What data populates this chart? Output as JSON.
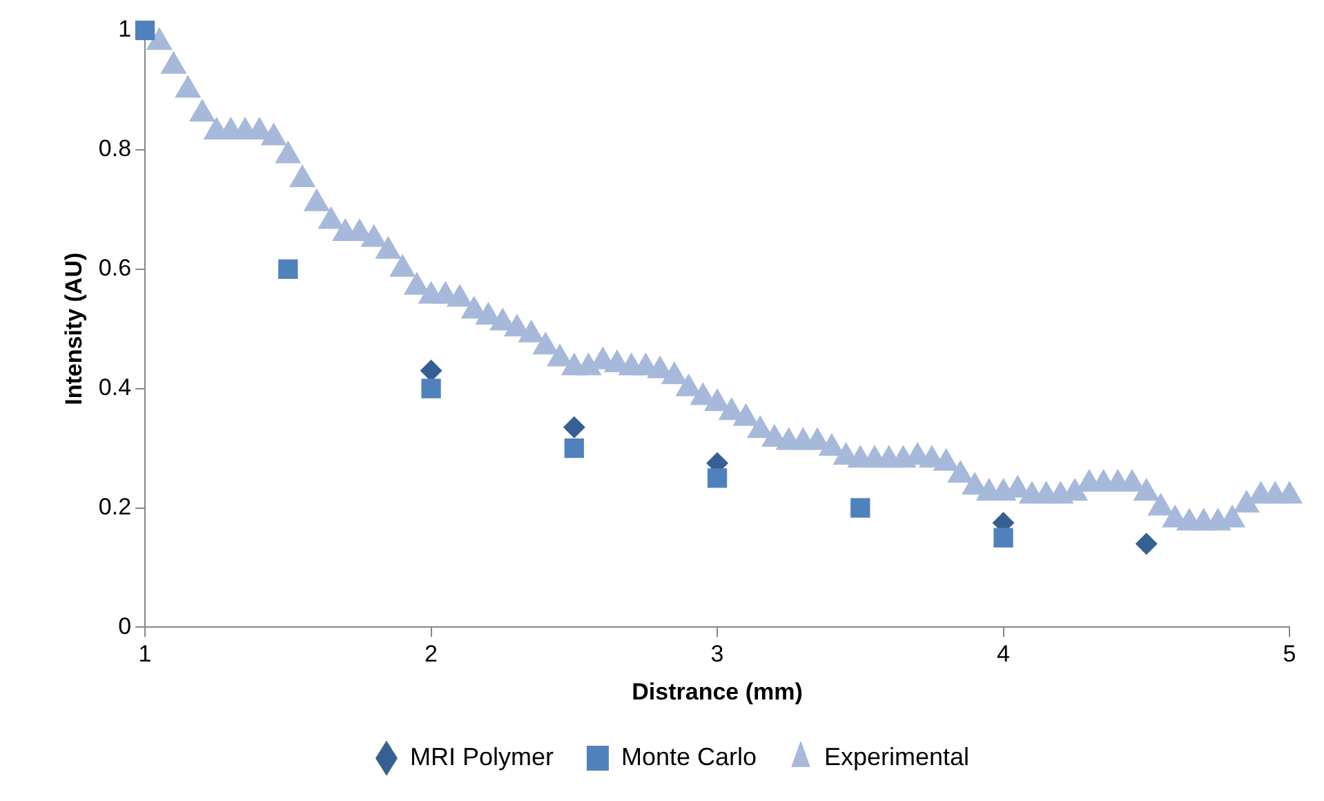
{
  "chart_data": {
    "type": "scatter",
    "xlabel": "Distrance (mm)",
    "ylabel": "Intensity (AU)",
    "xlim": [
      1,
      5
    ],
    "xticks": [
      1,
      2,
      3,
      4,
      5
    ],
    "ylim": [
      0,
      1
    ],
    "yticks": [
      0,
      0.2,
      0.4,
      0.6,
      0.8,
      1
    ],
    "grid": false,
    "legend": "bottom",
    "series": [
      {
        "name": "MRI Polymer",
        "color": "#376092",
        "marker": "diamond",
        "x": [
          2,
          2.5,
          3,
          4,
          4.5
        ],
        "values": [
          0.43,
          0.335,
          0.275,
          0.175,
          0.14
        ]
      },
      {
        "name": "Monte Carlo",
        "color": "#4f81bd",
        "marker": "square",
        "x": [
          1,
          1.5,
          2,
          2.5,
          3,
          3.5,
          4
        ],
        "values": [
          1,
          0.6,
          0.4,
          0.3,
          0.25,
          0.2,
          0.15
        ]
      },
      {
        "name": "Experimental",
        "color": "#a6b9da",
        "marker": "triangle",
        "x": [
          1.05,
          1.1,
          1.15,
          1.2,
          1.25,
          1.3,
          1.35,
          1.4,
          1.45,
          1.5,
          1.55,
          1.6,
          1.65,
          1.7,
          1.75,
          1.8,
          1.85,
          1.9,
          1.95,
          2,
          2.05,
          2.1,
          2.15,
          2.2,
          2.25,
          2.3,
          2.35,
          2.4,
          2.45,
          2.5,
          2.55,
          2.6,
          2.65,
          2.7,
          2.75,
          2.8,
          2.85,
          2.9,
          2.95,
          3,
          3.05,
          3.1,
          3.15,
          3.2,
          3.25,
          3.3,
          3.35,
          3.4,
          3.45,
          3.5,
          3.55,
          3.6,
          3.65,
          3.7,
          3.75,
          3.8,
          3.85,
          3.9,
          3.95,
          4,
          4.05,
          4.1,
          4.15,
          4.2,
          4.25,
          4.3,
          4.35,
          4.4,
          4.45,
          4.5,
          4.55,
          4.6,
          4.65,
          4.7,
          4.75,
          4.8,
          4.85,
          4.9,
          4.95,
          5
        ],
        "values": [
          0.98,
          0.94,
          0.9,
          0.86,
          0.83,
          0.83,
          0.83,
          0.83,
          0.82,
          0.79,
          0.75,
          0.71,
          0.68,
          0.66,
          0.66,
          0.65,
          0.63,
          0.6,
          0.57,
          0.555,
          0.555,
          0.55,
          0.53,
          0.52,
          0.51,
          0.5,
          0.49,
          0.47,
          0.45,
          0.435,
          0.435,
          0.445,
          0.44,
          0.435,
          0.435,
          0.43,
          0.42,
          0.4,
          0.385,
          0.375,
          0.36,
          0.35,
          0.33,
          0.315,
          0.31,
          0.31,
          0.31,
          0.3,
          0.285,
          0.28,
          0.28,
          0.28,
          0.28,
          0.285,
          0.28,
          0.275,
          0.255,
          0.235,
          0.225,
          0.225,
          0.23,
          0.22,
          0.22,
          0.22,
          0.225,
          0.24,
          0.24,
          0.24,
          0.24,
          0.225,
          0.2,
          0.18,
          0.175,
          0.175,
          0.175,
          0.18,
          0.205,
          0.22,
          0.22,
          0.22
        ]
      }
    ]
  }
}
